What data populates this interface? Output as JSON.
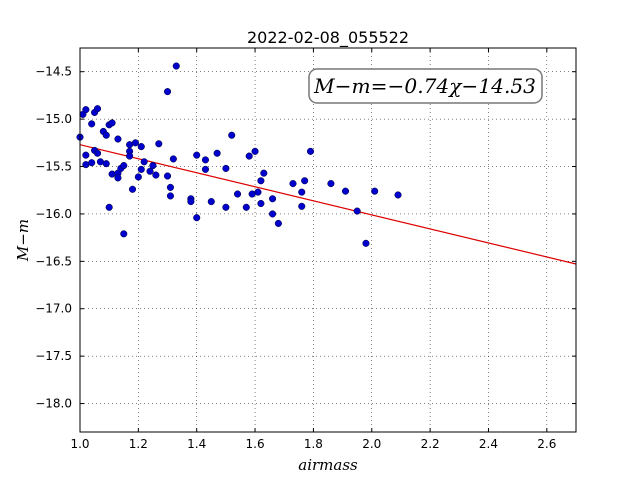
{
  "chart_data": {
    "type": "scatter",
    "title": "2022-02-08_055522",
    "xlabel": "airmass",
    "ylabel": "M−m",
    "annotation": "M−m=−0.74χ−14.53",
    "xlim": [
      1.0,
      2.7
    ],
    "ylim": [
      -18.3,
      -14.25
    ],
    "y_inverted": true,
    "grid": true,
    "legend": "none",
    "x_ticks": [
      "1.0",
      "1.2",
      "1.4",
      "1.6",
      "1.8",
      "2.0",
      "2.2",
      "2.4",
      "2.6"
    ],
    "y_ticks": [
      "−14.5",
      "−15.0",
      "−15.5",
      "−16.0",
      "−16.5",
      "−17.0",
      "−17.5",
      "−18.0"
    ],
    "colors": {
      "points": "#0000cc",
      "fit_line": "#dd0000"
    },
    "fit": {
      "slope": -0.74,
      "intercept": -14.53,
      "x_range": [
        1.0,
        2.7
      ]
    },
    "points": [
      {
        "x": 1.0,
        "y": -15.19
      },
      {
        "x": 1.01,
        "y": -14.95
      },
      {
        "x": 1.02,
        "y": -14.9
      },
      {
        "x": 1.02,
        "y": -15.38
      },
      {
        "x": 1.02,
        "y": -15.48
      },
      {
        "x": 1.04,
        "y": -15.46
      },
      {
        "x": 1.04,
        "y": -15.05
      },
      {
        "x": 1.05,
        "y": -14.93
      },
      {
        "x": 1.05,
        "y": -15.33
      },
      {
        "x": 1.06,
        "y": -15.36
      },
      {
        "x": 1.06,
        "y": -14.89
      },
      {
        "x": 1.07,
        "y": -15.45
      },
      {
        "x": 1.08,
        "y": -15.13
      },
      {
        "x": 1.09,
        "y": -15.17
      },
      {
        "x": 1.09,
        "y": -15.47
      },
      {
        "x": 1.1,
        "y": -15.93
      },
      {
        "x": 1.1,
        "y": -15.06
      },
      {
        "x": 1.11,
        "y": -15.04
      },
      {
        "x": 1.11,
        "y": -15.58
      },
      {
        "x": 1.13,
        "y": -15.21
      },
      {
        "x": 1.13,
        "y": -15.57
      },
      {
        "x": 1.13,
        "y": -15.62
      },
      {
        "x": 1.14,
        "y": -15.52
      },
      {
        "x": 1.15,
        "y": -16.21
      },
      {
        "x": 1.15,
        "y": -15.49
      },
      {
        "x": 1.17,
        "y": -15.27
      },
      {
        "x": 1.17,
        "y": -15.34
      },
      {
        "x": 1.17,
        "y": -15.39
      },
      {
        "x": 1.18,
        "y": -15.74
      },
      {
        "x": 1.19,
        "y": -15.25
      },
      {
        "x": 1.2,
        "y": -15.61
      },
      {
        "x": 1.21,
        "y": -15.53
      },
      {
        "x": 1.21,
        "y": -15.29
      },
      {
        "x": 1.22,
        "y": -15.45
      },
      {
        "x": 1.24,
        "y": -15.55
      },
      {
        "x": 1.25,
        "y": -15.49
      },
      {
        "x": 1.26,
        "y": -15.59
      },
      {
        "x": 1.27,
        "y": -15.26
      },
      {
        "x": 1.3,
        "y": -14.71
      },
      {
        "x": 1.3,
        "y": -15.6
      },
      {
        "x": 1.31,
        "y": -15.72
      },
      {
        "x": 1.31,
        "y": -15.81
      },
      {
        "x": 1.32,
        "y": -15.42
      },
      {
        "x": 1.33,
        "y": -14.44
      },
      {
        "x": 1.38,
        "y": -15.84
      },
      {
        "x": 1.38,
        "y": -15.87
      },
      {
        "x": 1.4,
        "y": -15.38
      },
      {
        "x": 1.4,
        "y": -16.04
      },
      {
        "x": 1.43,
        "y": -15.43
      },
      {
        "x": 1.43,
        "y": -15.53
      },
      {
        "x": 1.45,
        "y": -15.87
      },
      {
        "x": 1.47,
        "y": -15.36
      },
      {
        "x": 1.5,
        "y": -15.93
      },
      {
        "x": 1.5,
        "y": -15.52
      },
      {
        "x": 1.52,
        "y": -15.17
      },
      {
        "x": 1.54,
        "y": -15.79
      },
      {
        "x": 1.57,
        "y": -15.93
      },
      {
        "x": 1.58,
        "y": -15.39
      },
      {
        "x": 1.59,
        "y": -15.79
      },
      {
        "x": 1.6,
        "y": -15.34
      },
      {
        "x": 1.61,
        "y": -15.77
      },
      {
        "x": 1.62,
        "y": -15.65
      },
      {
        "x": 1.62,
        "y": -15.89
      },
      {
        "x": 1.63,
        "y": -15.57
      },
      {
        "x": 1.66,
        "y": -15.84
      },
      {
        "x": 1.66,
        "y": -16.0
      },
      {
        "x": 1.68,
        "y": -16.1
      },
      {
        "x": 1.73,
        "y": -15.68
      },
      {
        "x": 1.76,
        "y": -15.92
      },
      {
        "x": 1.76,
        "y": -15.77
      },
      {
        "x": 1.77,
        "y": -15.65
      },
      {
        "x": 1.79,
        "y": -15.34
      },
      {
        "x": 1.86,
        "y": -15.68
      },
      {
        "x": 1.91,
        "y": -15.76
      },
      {
        "x": 1.95,
        "y": -15.97
      },
      {
        "x": 1.98,
        "y": -16.31
      },
      {
        "x": 2.01,
        "y": -15.76
      },
      {
        "x": 2.09,
        "y": -15.8
      }
    ]
  }
}
